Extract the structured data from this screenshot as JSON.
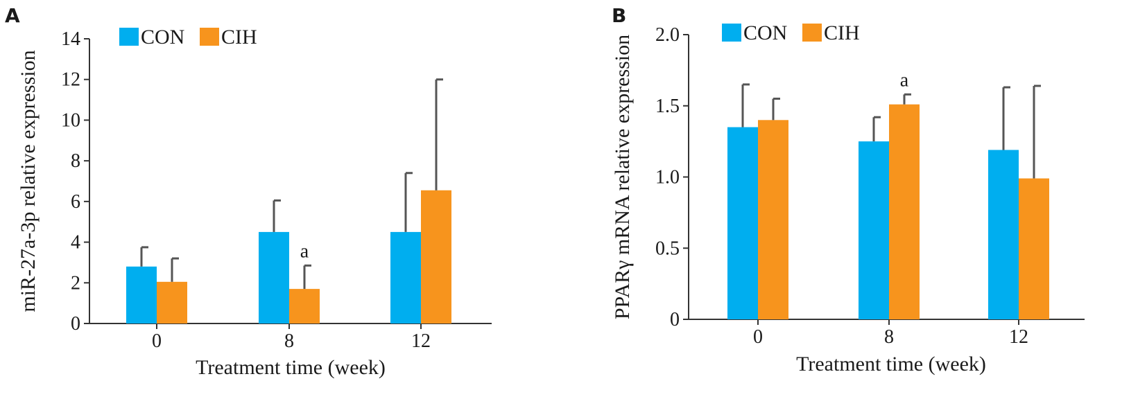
{
  "colors": {
    "CON": "#00aeef",
    "CIH": "#f7941d",
    "axis": "#333333",
    "error": "#555555"
  },
  "chart_data": [
    {
      "panel": "A",
      "type": "bar",
      "categories": [
        "0",
        "8",
        "12"
      ],
      "series": [
        {
          "name": "CON",
          "values": [
            2.8,
            4.5,
            4.5
          ],
          "errors": [
            0.95,
            1.55,
            2.9
          ]
        },
        {
          "name": "CIH",
          "values": [
            2.05,
            1.7,
            6.55
          ],
          "errors": [
            1.15,
            1.15,
            5.45
          ]
        }
      ],
      "annotations": [
        {
          "category": "8",
          "series": "CIH",
          "text": "a"
        }
      ],
      "xlabel": "Treatment time (week)",
      "ylabel": "miR-27a-3p relative expression",
      "ylim": [
        0,
        14
      ],
      "yticks": [
        "0",
        "2",
        "4",
        "6",
        "8",
        "10",
        "12",
        "14"
      ],
      "ytick_values": [
        0,
        2,
        4,
        6,
        8,
        10,
        12,
        14
      ],
      "legend": "top-left",
      "grid": false
    },
    {
      "panel": "B",
      "type": "bar",
      "categories": [
        "0",
        "8",
        "12"
      ],
      "series": [
        {
          "name": "CON",
          "values": [
            1.35,
            1.25,
            1.19
          ],
          "errors": [
            0.3,
            0.17,
            0.44
          ]
        },
        {
          "name": "CIH",
          "values": [
            1.4,
            1.51,
            0.99
          ],
          "errors": [
            0.15,
            0.07,
            0.65
          ]
        }
      ],
      "annotations": [
        {
          "category": "8",
          "series": "CIH",
          "text": "a"
        }
      ],
      "xlabel": "Treatment time (week)",
      "ylabel": "PPARγ mRNA relative expression",
      "ylim": [
        0,
        2.0
      ],
      "yticks": [
        "0",
        "0.5",
        "1.0",
        "1.5",
        "2.0"
      ],
      "ytick_values": [
        0,
        0.5,
        1.0,
        1.5,
        2.0
      ],
      "legend": "top-left",
      "grid": false
    }
  ]
}
